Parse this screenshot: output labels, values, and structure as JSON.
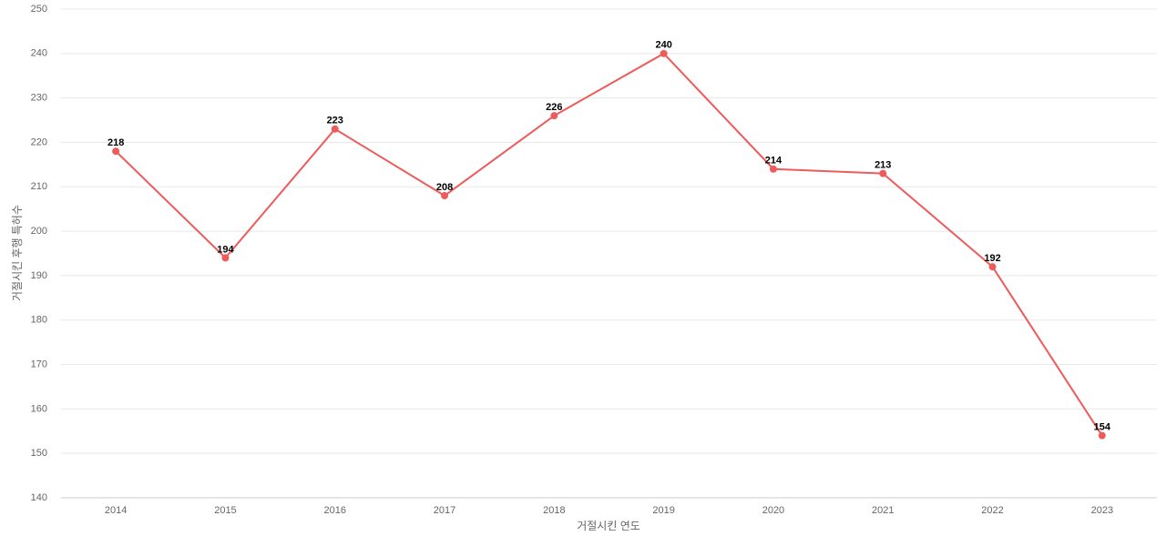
{
  "chart_data": {
    "type": "line",
    "x_label": "거절시킨 연도",
    "y_label": "거절시킨 후행 특허수",
    "categories": [
      "2014",
      "2015",
      "2016",
      "2017",
      "2018",
      "2019",
      "2020",
      "2021",
      "2022",
      "2023"
    ],
    "series": [
      {
        "name": "거절시킨 후행 특허수",
        "color": "#ee5b5b",
        "values": [
          218,
          194,
          223,
          208,
          226,
          240,
          214,
          213,
          192,
          154
        ]
      }
    ],
    "ylim": [
      140,
      250
    ],
    "yticks": [
      140,
      150,
      160,
      170,
      180,
      190,
      200,
      210,
      220,
      230,
      240,
      250
    ],
    "grid": true
  }
}
